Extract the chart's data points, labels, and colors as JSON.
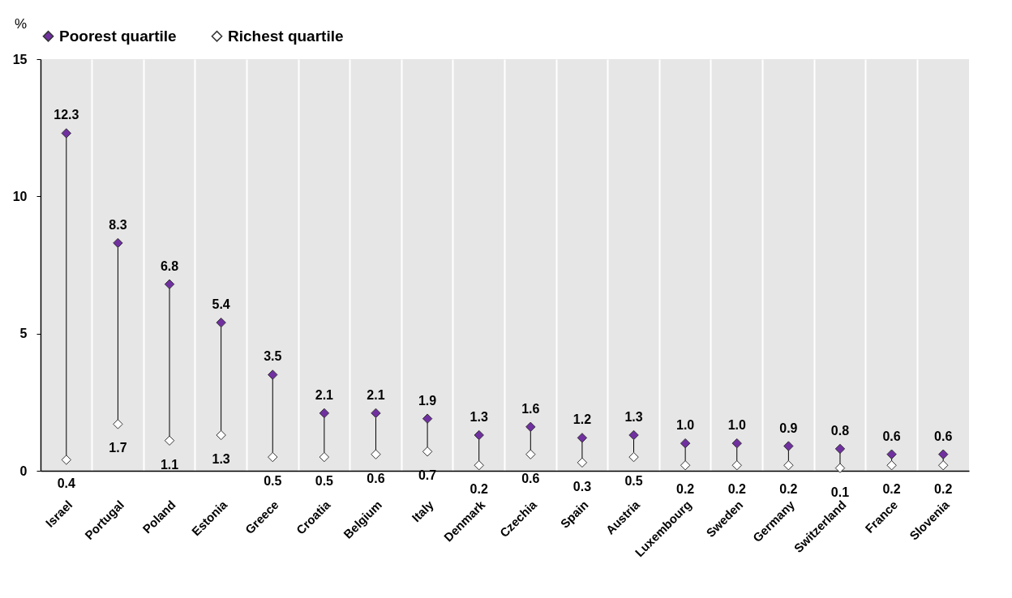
{
  "chart_data": {
    "type": "scatter",
    "categories": [
      "Israel",
      "Portugal",
      "Poland",
      "Estonia",
      "Greece",
      "Croatia",
      "Belgium",
      "Italy",
      "Denmark",
      "Czechia",
      "Spain",
      "Austria",
      "Luxembourg",
      "Sweden",
      "Germany",
      "Switzerland",
      "France",
      "Slovenia"
    ],
    "series": [
      {
        "name": "Poorest quartile",
        "color": "#7030a0",
        "values": [
          12.3,
          8.3,
          6.8,
          5.4,
          3.5,
          2.1,
          2.1,
          1.9,
          1.3,
          1.6,
          1.2,
          1.3,
          1.0,
          1.0,
          0.9,
          0.8,
          0.6,
          0.6
        ],
        "value_labels": [
          "12.3",
          "8.3",
          "6.8",
          "5.4",
          "3.5",
          "2.1",
          "2.1",
          "1.9",
          "1.3",
          "1.6",
          "1.2",
          "1.3",
          "1.0",
          "1.0",
          "0.9",
          "0.8",
          "0.6",
          "0.6"
        ]
      },
      {
        "name": "Richest quartile",
        "color": "#ffffff",
        "values": [
          0.4,
          1.7,
          1.1,
          1.3,
          0.5,
          0.5,
          0.6,
          0.7,
          0.2,
          0.6,
          0.3,
          0.5,
          0.2,
          0.2,
          0.2,
          0.1,
          0.2,
          0.2
        ],
        "value_labels": [
          "0.4",
          "1.7",
          "1.1",
          "1.3",
          "0.5",
          "0.5",
          "0.6",
          "0.7",
          "0.2",
          "0.6",
          "0.3",
          "0.5",
          "0.2",
          "0.2",
          "0.2",
          "0.1",
          "0.2",
          "0.2"
        ]
      }
    ],
    "ylabel": "%",
    "ylim": [
      0,
      15
    ],
    "yticks": [
      0,
      5,
      10,
      15
    ],
    "grid": "x",
    "legend": "top",
    "marker": "diamond"
  }
}
